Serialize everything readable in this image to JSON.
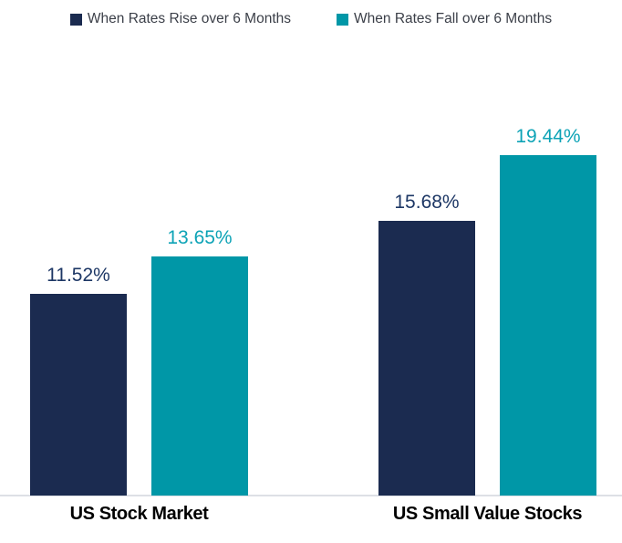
{
  "legend": {
    "items": [
      {
        "label": "When Rates Rise over 6 Months",
        "color": "#1b2b50"
      },
      {
        "label": "When Rates Fall over 6 Months",
        "color": "#0097a7"
      }
    ]
  },
  "chart_data": {
    "type": "bar",
    "categories": [
      "US Stock Market",
      "US Small Value Stocks"
    ],
    "series": [
      {
        "name": "When Rates Rise over 6 Months",
        "color": "#1b2b50",
        "label_color": "#1d3765",
        "values": [
          11.52,
          15.68
        ],
        "data_labels": [
          "11.52%",
          "15.68%"
        ]
      },
      {
        "name": "When Rates Fall over 6 Months",
        "color": "#0097a7",
        "label_color": "#0da3b6",
        "values": [
          13.65,
          19.44
        ],
        "data_labels": [
          "13.65%",
          "19.44%"
        ]
      }
    ],
    "ylim": [
      0,
      19.44
    ],
    "value_suffix": "%",
    "grid": false,
    "y_axis_visible": false,
    "legend_position": "top",
    "baseline_color": "#dde0e5",
    "background_color": "#ffffff"
  }
}
